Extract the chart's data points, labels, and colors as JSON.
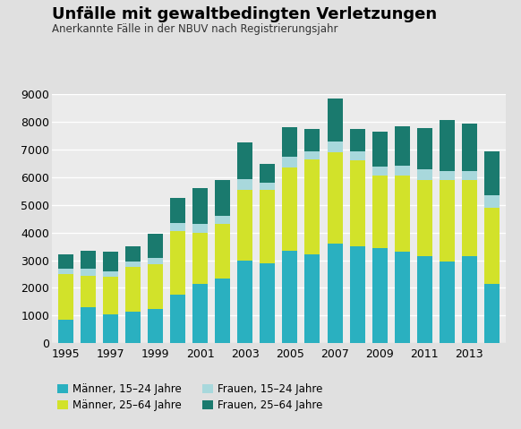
{
  "title": "Unfälle mit gewaltbedingten Verletzungen",
  "subtitle": "Anerkannte Fälle in der NBUV nach Registrierungsjahr",
  "years": [
    1995,
    1996,
    1997,
    1998,
    1999,
    2000,
    2001,
    2002,
    2003,
    2004,
    2005,
    2006,
    2007,
    2008,
    2009,
    2010,
    2011,
    2012,
    2013,
    2014
  ],
  "maenner_15_24": [
    850,
    1300,
    1050,
    1150,
    1250,
    1750,
    2150,
    2350,
    3000,
    2900,
    3350,
    3200,
    3600,
    3500,
    3450,
    3300,
    3150,
    2950,
    3150,
    2150
  ],
  "maenner_25_64": [
    1650,
    1150,
    1350,
    1600,
    1600,
    2300,
    1850,
    1950,
    2550,
    2650,
    3000,
    3450,
    3300,
    3100,
    2600,
    2750,
    2750,
    2950,
    2750,
    2750
  ],
  "frauen_15_24": [
    200,
    250,
    200,
    200,
    250,
    300,
    300,
    300,
    400,
    250,
    400,
    300,
    400,
    350,
    350,
    380,
    380,
    320,
    330,
    450
  ],
  "frauen_25_64": [
    500,
    650,
    700,
    550,
    850,
    900,
    1300,
    1300,
    1300,
    700,
    1050,
    800,
    1550,
    800,
    1250,
    1400,
    1500,
    1850,
    1700,
    1600
  ],
  "color_maenner_15_24": "#2ab0c0",
  "color_maenner_25_64": "#d2e22a",
  "color_frauen_15_24": "#a8d8dc",
  "color_frauen_25_64": "#1a7a6e",
  "ylim": [
    0,
    9000
  ],
  "yticks": [
    0,
    1000,
    2000,
    3000,
    4000,
    5000,
    6000,
    7000,
    8000,
    9000
  ],
  "background_color": "#e0e0e0",
  "plot_background": "#ebebeb",
  "legend_labels": [
    "Männer, 15–24 Jahre",
    "Männer, 25–64 Jahre",
    "Frauen, 15–24 Jahre",
    "Frauen, 25–64 Jahre"
  ]
}
